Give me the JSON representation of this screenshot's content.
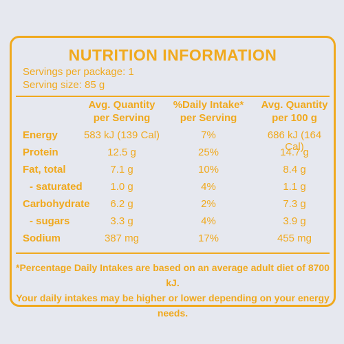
{
  "title": "NUTRITION INFORMATION",
  "servings_per_package": "Servings per package: 1",
  "serving_size": "Serving size: 85 g",
  "headers": {
    "col1": [
      "Avg. Quantity",
      "per Serving"
    ],
    "col2": [
      "%Daily Intake*",
      "per Serving"
    ],
    "col3": [
      "Avg. Quantity",
      "per 100 g"
    ]
  },
  "rows": [
    {
      "label": "Energy",
      "per_serving": "583 kJ (139 Cal)",
      "daily_intake": "7%",
      "per_100g": "686 kJ (164 Cal)"
    },
    {
      "label": "Protein",
      "per_serving": "12.5 g",
      "daily_intake": "25%",
      "per_100g": "14.7 g"
    },
    {
      "label": "Fat, total",
      "per_serving": "7.1 g",
      "daily_intake": "10%",
      "per_100g": "8.4 g"
    },
    {
      "label": "- saturated",
      "per_serving": "1.0 g",
      "daily_intake": "4%",
      "per_100g": "1.1 g"
    },
    {
      "label": "Carbohydrate",
      "per_serving": "6.2 g",
      "daily_intake": "2%",
      "per_100g": "7.3 g"
    },
    {
      "label": "- sugars",
      "per_serving": "3.3 g",
      "daily_intake": "4%",
      "per_100g": "3.9 g"
    },
    {
      "label": "Sodium",
      "per_serving": "387 mg",
      "daily_intake": "17%",
      "per_100g": "455 mg"
    }
  ],
  "footnote": [
    "*Percentage Daily Intakes are based on an average adult diet of 8700 kJ.",
    "Your daily intakes may be higher or lower depending on your energy needs."
  ],
  "colors": {
    "text": "#f0a91e",
    "background": "#e6e8ef"
  }
}
